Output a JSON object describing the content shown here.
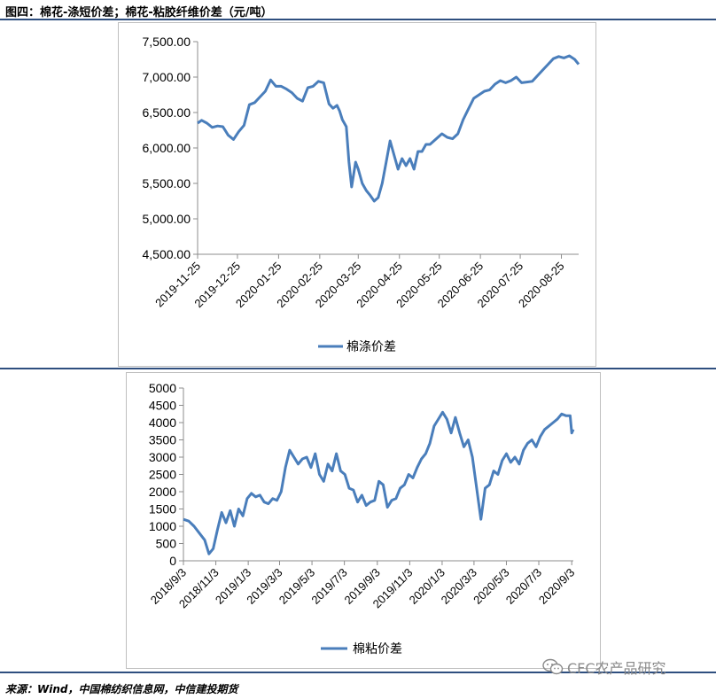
{
  "figure_title": "图四：棉花-涤短价差；棉花-粘胶纤维价差（元/吨）",
  "source": "来源：Wind，中国棉纺织信息网，中信建投期货",
  "watermark": "CFC农产品研究",
  "chart_data": [
    {
      "type": "line",
      "title": "",
      "xlabel": "",
      "ylabel": "",
      "ylim": [
        4500,
        7500
      ],
      "yticks": [
        "4,500.00",
        "5,000.00",
        "5,500.00",
        "6,000.00",
        "6,500.00",
        "7,000.00",
        "7,500.00"
      ],
      "xticks": [
        "2019-11-25",
        "2019-12-25",
        "2020-01-25",
        "2020-02-25",
        "2020-03-25",
        "2020-04-25",
        "2020-05-25",
        "2020-06-25",
        "2020-07-25",
        "2020-08-25"
      ],
      "legend": "bottom-center",
      "grid": false,
      "color": "#4a7ebb",
      "series": [
        {
          "name": "棉涤价差",
          "x": [
            "2019-11-25",
            "2019-11-28",
            "2019-12-02",
            "2019-12-06",
            "2019-12-10",
            "2019-12-14",
            "2019-12-18",
            "2019-12-22",
            "2019-12-26",
            "2019-12-30",
            "2020-01-03",
            "2020-01-07",
            "2020-01-11",
            "2020-01-15",
            "2020-01-19",
            "2020-01-23",
            "2020-01-27",
            "2020-01-31",
            "2020-02-04",
            "2020-02-08",
            "2020-02-12",
            "2020-02-16",
            "2020-02-20",
            "2020-02-24",
            "2020-02-28",
            "2020-03-03",
            "2020-03-06",
            "2020-03-09",
            "2020-03-11",
            "2020-03-13",
            "2020-03-16",
            "2020-03-18",
            "2020-03-20",
            "2020-03-23",
            "2020-03-25",
            "2020-03-28",
            "2020-03-31",
            "2020-04-03",
            "2020-04-06",
            "2020-04-09",
            "2020-04-12",
            "2020-04-15",
            "2020-04-18",
            "2020-04-21",
            "2020-04-24",
            "2020-04-27",
            "2020-04-30",
            "2020-05-03",
            "2020-05-06",
            "2020-05-09",
            "2020-05-12",
            "2020-05-15",
            "2020-05-18",
            "2020-05-21",
            "2020-05-24",
            "2020-05-27",
            "2020-05-31",
            "2020-06-04",
            "2020-06-08",
            "2020-06-12",
            "2020-06-16",
            "2020-06-20",
            "2020-06-24",
            "2020-06-28",
            "2020-07-02",
            "2020-07-06",
            "2020-07-10",
            "2020-07-14",
            "2020-07-18",
            "2020-07-22",
            "2020-07-26",
            "2020-07-30",
            "2020-08-03",
            "2020-08-07",
            "2020-08-11",
            "2020-08-15",
            "2020-08-19",
            "2020-08-23",
            "2020-08-27",
            "2020-08-31",
            "2020-09-04",
            "2020-09-07"
          ],
          "values": [
            6350,
            6390,
            6350,
            6290,
            6310,
            6300,
            6180,
            6120,
            6230,
            6320,
            6610,
            6640,
            6720,
            6800,
            6960,
            6870,
            6870,
            6830,
            6780,
            6700,
            6660,
            6850,
            6870,
            6940,
            6920,
            6620,
            6560,
            6600,
            6520,
            6400,
            6300,
            5800,
            5450,
            5800,
            5700,
            5500,
            5400,
            5330,
            5250,
            5300,
            5500,
            5800,
            6100,
            5900,
            5700,
            5850,
            5750,
            5850,
            5700,
            5950,
            5950,
            6050,
            6050,
            6100,
            6150,
            6200,
            6150,
            6130,
            6200,
            6400,
            6550,
            6700,
            6750,
            6800,
            6820,
            6900,
            6950,
            6920,
            6950,
            7000,
            6920,
            6930,
            6940,
            7020,
            7100,
            7180,
            7260,
            7290,
            7270,
            7300,
            7250,
            7180
          ]
        }
      ]
    },
    {
      "type": "line",
      "title": "",
      "xlabel": "",
      "ylabel": "",
      "ylim": [
        0,
        5000
      ],
      "yticks": [
        "0",
        "500",
        "1000",
        "1500",
        "2000",
        "2500",
        "3000",
        "3500",
        "4000",
        "4500",
        "5000"
      ],
      "xticks": [
        "2018/9/3",
        "2018/11/3",
        "2019/1/3",
        "2019/3/3",
        "2019/5/3",
        "2019/7/3",
        "2019/9/3",
        "2019/11/3",
        "2020/1/3",
        "2020/3/3",
        "2020/5/3",
        "2020/7/3",
        "2020/9/3"
      ],
      "legend": "bottom-center",
      "grid": false,
      "color": "#4a7ebb",
      "series": [
        {
          "name": "棉粘价差",
          "x": [
            "2018-09-03",
            "2018-09-13",
            "2018-09-23",
            "2018-10-03",
            "2018-10-13",
            "2018-10-21",
            "2018-10-29",
            "2018-11-06",
            "2018-11-14",
            "2018-11-22",
            "2018-11-30",
            "2018-12-08",
            "2018-12-16",
            "2018-12-24",
            "2019-01-01",
            "2019-01-09",
            "2019-01-17",
            "2019-01-25",
            "2019-02-02",
            "2019-02-10",
            "2019-02-18",
            "2019-02-26",
            "2019-03-06",
            "2019-03-14",
            "2019-03-22",
            "2019-03-30",
            "2019-04-07",
            "2019-04-15",
            "2019-04-23",
            "2019-05-01",
            "2019-05-09",
            "2019-05-17",
            "2019-05-25",
            "2019-06-02",
            "2019-06-10",
            "2019-06-18",
            "2019-06-26",
            "2019-07-04",
            "2019-07-12",
            "2019-07-20",
            "2019-07-28",
            "2019-08-05",
            "2019-08-13",
            "2019-08-21",
            "2019-08-29",
            "2019-09-06",
            "2019-09-14",
            "2019-09-22",
            "2019-09-30",
            "2019-10-08",
            "2019-10-16",
            "2019-10-24",
            "2019-11-01",
            "2019-11-09",
            "2019-11-17",
            "2019-11-25",
            "2019-12-03",
            "2019-12-11",
            "2019-12-19",
            "2019-12-27",
            "2020-01-04",
            "2020-01-12",
            "2020-01-20",
            "2020-01-28",
            "2020-02-05",
            "2020-02-13",
            "2020-02-21",
            "2020-02-29",
            "2020-03-08",
            "2020-03-16",
            "2020-03-24",
            "2020-04-01",
            "2020-04-09",
            "2020-04-17",
            "2020-04-25",
            "2020-05-03",
            "2020-05-11",
            "2020-05-19",
            "2020-05-27",
            "2020-06-04",
            "2020-06-12",
            "2020-06-20",
            "2020-06-28",
            "2020-07-06",
            "2020-07-14",
            "2020-07-22",
            "2020-07-30",
            "2020-08-07",
            "2020-08-15",
            "2020-08-23",
            "2020-08-31",
            "2020-09-03",
            "2020-09-06"
          ],
          "values": [
            1200,
            1150,
            1000,
            800,
            600,
            200,
            350,
            900,
            1400,
            1100,
            1450,
            1000,
            1500,
            1300,
            1800,
            1950,
            1850,
            1900,
            1700,
            1650,
            1800,
            1750,
            2000,
            2700,
            3200,
            3000,
            2800,
            2950,
            3000,
            2700,
            3100,
            2500,
            2300,
            2800,
            2600,
            3100,
            2600,
            2500,
            2100,
            2050,
            1700,
            1900,
            1600,
            1700,
            1750,
            2300,
            2200,
            1550,
            1750,
            1800,
            2100,
            2200,
            2500,
            2400,
            2700,
            2950,
            3100,
            3400,
            3900,
            4100,
            4300,
            4100,
            3700,
            4150,
            3700,
            3300,
            3500,
            3000,
            2100,
            1200,
            2100,
            2200,
            2600,
            2500,
            2900,
            3100,
            2850,
            3000,
            2800,
            3200,
            3400,
            3500,
            3300,
            3600,
            3800,
            3900,
            4000,
            4100,
            4250,
            4200,
            4200,
            3700,
            3800
          ]
        }
      ]
    }
  ]
}
